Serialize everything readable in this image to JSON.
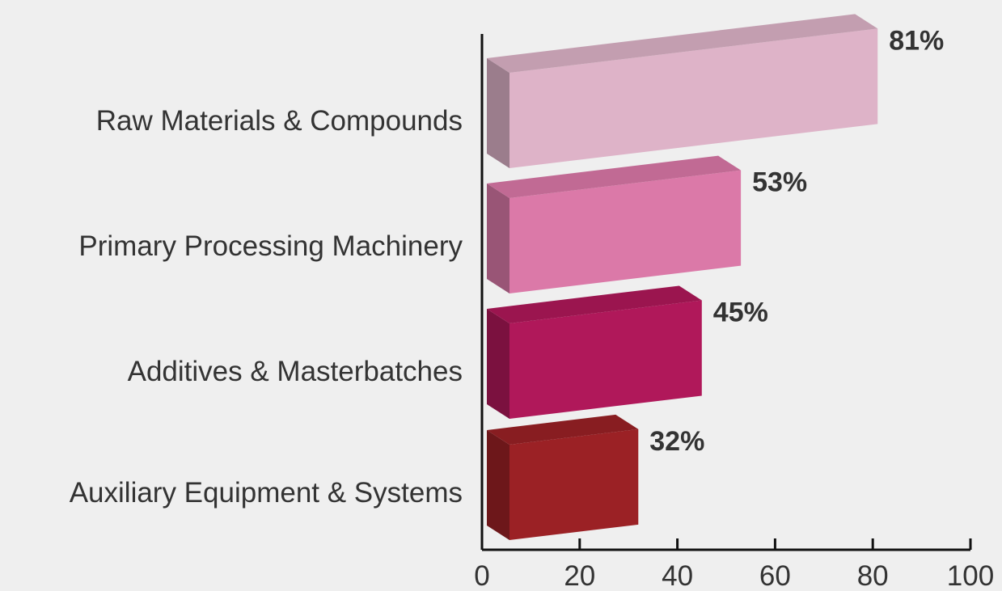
{
  "chart_data": {
    "type": "bar",
    "orientation": "horizontal",
    "style": "3d",
    "categories": [
      "Raw Materials & Compounds",
      "Primary Processing Machinery",
      "Additives & Masterbatches",
      "Auxiliary Equipment & Systems"
    ],
    "values": [
      81,
      53,
      45,
      32
    ],
    "value_labels": [
      "81%",
      "53%",
      "45%",
      "32%"
    ],
    "bar_colors": [
      "#deb3c8",
      "#db79a8",
      "#b0185a",
      "#9b2125"
    ],
    "xlim": [
      0,
      100
    ],
    "xticks": [
      0,
      20,
      40,
      60,
      80,
      100
    ],
    "xtick_labels": [
      "0",
      "20",
      "40",
      "60",
      "80",
      "100"
    ],
    "title": "",
    "xlabel": "",
    "ylabel": "",
    "grid": false,
    "legend": "none"
  }
}
